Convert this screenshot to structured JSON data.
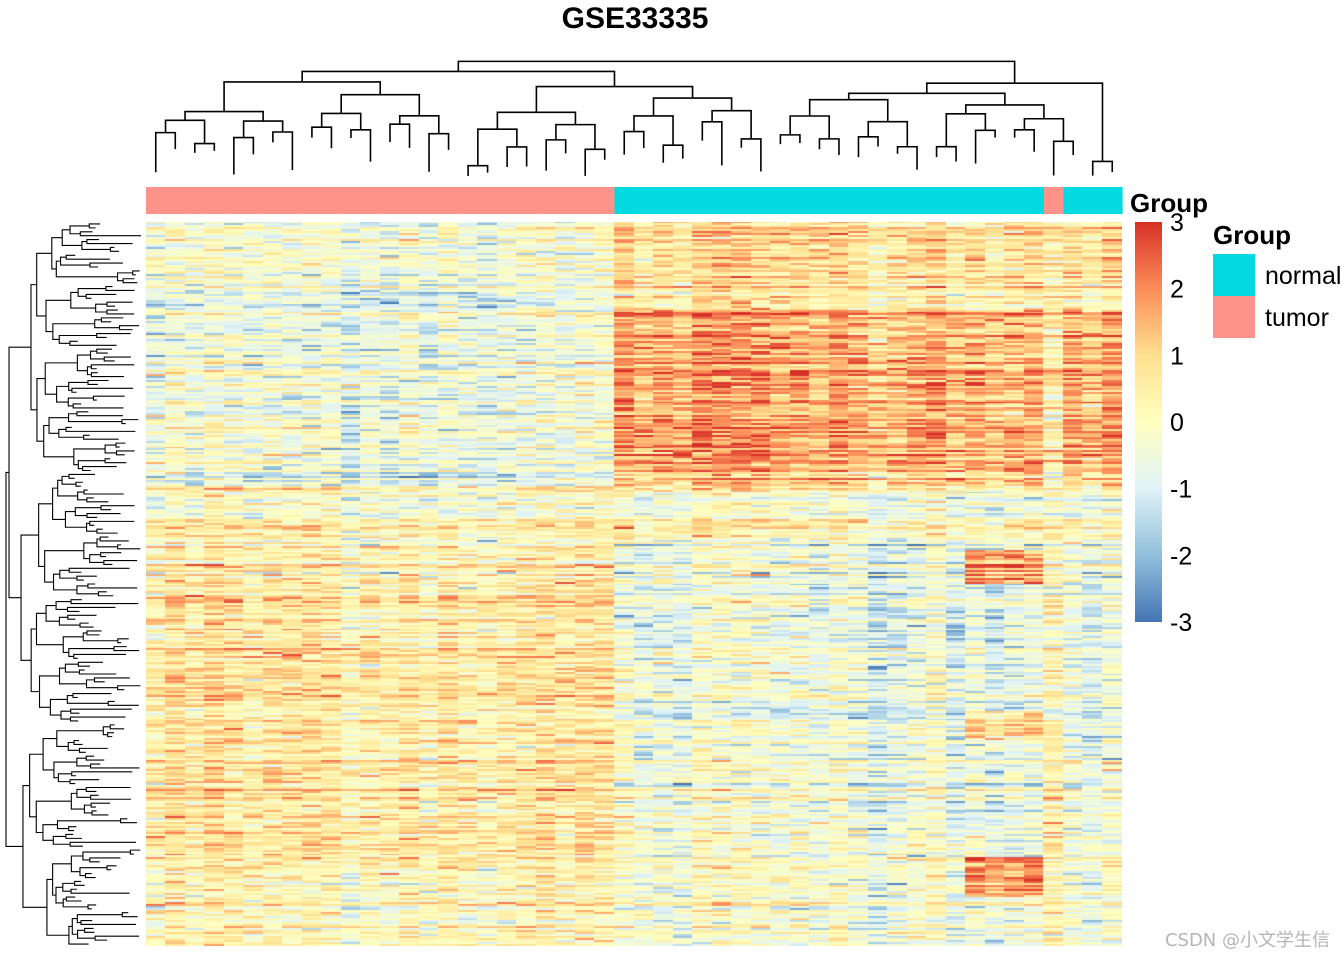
{
  "chart_data": {
    "type": "heatmap",
    "title": "GSE33335",
    "annotation_title": "Group",
    "group_legend": [
      {
        "name": "normal",
        "color": "#00DAE0"
      },
      {
        "name": "tumor",
        "color": "#FF9289"
      }
    ],
    "column_groups": [
      "tumor",
      "tumor",
      "tumor",
      "tumor",
      "tumor",
      "tumor",
      "tumor",
      "tumor",
      "tumor",
      "tumor",
      "tumor",
      "tumor",
      "tumor",
      "tumor",
      "tumor",
      "tumor",
      "tumor",
      "tumor",
      "tumor",
      "tumor",
      "tumor",
      "tumor",
      "tumor",
      "tumor",
      "normal",
      "normal",
      "normal",
      "normal",
      "normal",
      "normal",
      "normal",
      "normal",
      "normal",
      "normal",
      "normal",
      "normal",
      "normal",
      "normal",
      "normal",
      "normal",
      "normal",
      "normal",
      "normal",
      "normal",
      "normal",
      "normal",
      "tumor",
      "normal",
      "normal",
      "normal"
    ],
    "color_scale": {
      "title": "Group",
      "min": -3,
      "max": 3,
      "ticks": [
        "3",
        "2",
        "1",
        "0",
        "-1",
        "-2",
        "-3"
      ],
      "colors": [
        "#4575B4",
        "#91BFDB",
        "#E0F3F8",
        "#FFFFBF",
        "#FEE090",
        "#FC8D59",
        "#D73027"
      ]
    },
    "n_columns": 50,
    "n_rows": 370,
    "row_clusters": [
      {
        "end": 45,
        "tumor": -0.3,
        "normal": 0.9,
        "outlier": 0.5
      },
      {
        "end": 135,
        "tumor": -0.5,
        "normal": 1.6,
        "outlier": 0.2
      },
      {
        "end": 165,
        "tumor": 0.2,
        "normal": 0.1,
        "outlier": 0.1
      },
      {
        "end": 185,
        "tumor": 0.5,
        "normal": -0.4,
        "outlier": 0.3
      },
      {
        "end": 255,
        "tumor": 0.7,
        "normal": -0.5,
        "outlier": 0.2
      },
      {
        "end": 325,
        "tumor": 0.6,
        "normal": -0.4,
        "outlier": 0.3
      },
      {
        "end": 370,
        "tumor": 0.2,
        "normal": -0.2,
        "outlier": 0.1
      }
    ]
  },
  "watermark": "CSDN @小文学生信"
}
